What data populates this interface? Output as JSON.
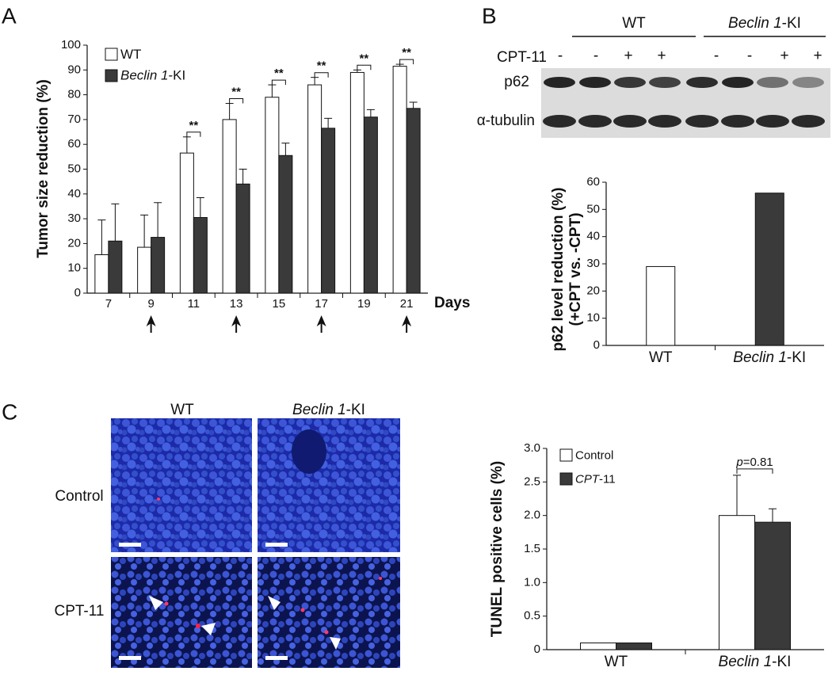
{
  "figure": {
    "panel_labels": [
      "A",
      "B",
      "C"
    ]
  },
  "chart_data": [
    {
      "type": "bar",
      "y_label": "Tumor size reduction (%)",
      "x_label": "Days",
      "categories": [
        "7",
        "9",
        "11",
        "13",
        "15",
        "17",
        "19",
        "21"
      ],
      "series": [
        {
          "name": "WT",
          "color": "#ffffff",
          "values": [
            15.5,
            18.5,
            56.5,
            70,
            79,
            84,
            89,
            91.5
          ],
          "errors": [
            14,
            13,
            6.5,
            6.5,
            5,
            3,
            1,
            0.8
          ]
        },
        {
          "name": "Beclin 1-KI",
          "color": "#3a3a3a",
          "values": [
            21,
            22.5,
            30.5,
            44,
            55.5,
            66.5,
            71,
            74.5
          ],
          "errors": [
            15,
            14,
            8,
            6,
            5,
            4,
            3,
            2.5
          ]
        }
      ],
      "significance_labels": [
        null,
        null,
        "**",
        "**",
        "**",
        "**",
        "**",
        "**"
      ],
      "ylim": [
        0,
        100
      ],
      "yticks": [
        0,
        10,
        20,
        30,
        40,
        50,
        60,
        70,
        80,
        90,
        100
      ],
      "legend": "upper-left"
    },
    {
      "type": "bar",
      "y_label": [
        "p62 level reduction (%)",
        "(+CPT vs. -CPT)"
      ],
      "categories": [
        "WT",
        "Beclin 1-KI"
      ],
      "values": [
        29,
        56
      ],
      "colors": [
        "#ffffff",
        "#3a3a3a"
      ],
      "ylim": [
        0,
        60
      ],
      "yticks": [
        0,
        10,
        20,
        30,
        40,
        50,
        60
      ]
    },
    {
      "type": "bar",
      "y_label": "TUNEL positive cells (%)",
      "categories": [
        "WT",
        "Beclin 1-KI"
      ],
      "series": [
        {
          "name": "Control",
          "color": "#ffffff",
          "values": [
            0.1,
            2.0
          ],
          "errors": [
            0,
            0.6
          ]
        },
        {
          "name": "CPT-11",
          "color": "#3a3a3a",
          "values": [
            0.1,
            1.9
          ],
          "errors": [
            0,
            0.2
          ]
        }
      ],
      "annotation": "p=0.81",
      "ylim": [
        0,
        3
      ],
      "yticks": [
        0,
        0.5,
        {
          "value": 1,
          "label": "1.0"
        },
        1.5,
        {
          "value": 2,
          "label": "2.0"
        },
        2.5,
        {
          "value": 3,
          "label": "3.0"
        }
      ],
      "legend": "upper-left"
    }
  ],
  "blot": {
    "groups": [
      "WT",
      "Beclin 1-KI"
    ],
    "treatment_label": "CPT-11",
    "treatment": [
      "-",
      "-",
      "+",
      "+",
      "-",
      "-",
      "+",
      "+"
    ],
    "rows": [
      "p62",
      "α-tubulin"
    ]
  },
  "micrographs": {
    "columns": [
      "WT",
      "Beclin 1-KI"
    ],
    "rows": [
      "Control",
      "CPT-11"
    ]
  }
}
